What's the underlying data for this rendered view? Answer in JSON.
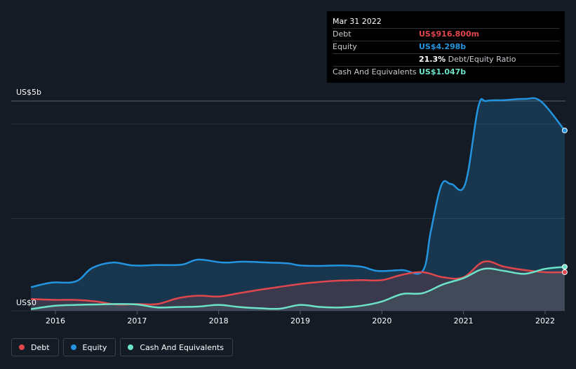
{
  "chart_data": {
    "type": "area",
    "title": "",
    "ylabel_top": "US$5b",
    "ylabel_bottom": "US$0",
    "ylim": [
      0,
      5
    ],
    "xlim": [
      2015.7,
      2022.24
    ],
    "x_ticks": [
      "2016",
      "2017",
      "2018",
      "2019",
      "2020",
      "2021",
      "2022"
    ],
    "series": [
      {
        "name": "Debt",
        "color": "#e0474c",
        "x": [
          2015.7,
          2016.0,
          2016.25,
          2016.5,
          2016.75,
          2017.0,
          2017.25,
          2017.5,
          2017.75,
          2018.0,
          2018.25,
          2018.5,
          2018.75,
          2019.0,
          2019.25,
          2019.5,
          2019.75,
          2020.0,
          2020.25,
          2020.5,
          2020.75,
          2021.0,
          2021.25,
          2021.5,
          2021.75,
          2022.0,
          2022.24
        ],
        "values": [
          0.28,
          0.26,
          0.26,
          0.22,
          0.15,
          0.16,
          0.16,
          0.3,
          0.36,
          0.34,
          0.42,
          0.5,
          0.57,
          0.64,
          0.69,
          0.72,
          0.73,
          0.73,
          0.86,
          0.92,
          0.8,
          0.8,
          1.17,
          1.05,
          0.97,
          0.92,
          0.92
        ]
      },
      {
        "name": "Equity",
        "color": "#2394df",
        "x": [
          2015.7,
          2015.95,
          2016.25,
          2016.45,
          2016.7,
          2016.95,
          2017.25,
          2017.55,
          2017.75,
          2018.05,
          2018.3,
          2018.6,
          2018.85,
          2019.0,
          2019.25,
          2019.5,
          2019.75,
          2019.95,
          2020.25,
          2020.5,
          2020.6,
          2020.73,
          2020.85,
          2021.02,
          2021.18,
          2021.28,
          2021.5,
          2021.75,
          2021.95,
          2022.24
        ],
        "values": [
          0.56,
          0.67,
          0.7,
          1.02,
          1.15,
          1.08,
          1.09,
          1.1,
          1.22,
          1.15,
          1.17,
          1.15,
          1.13,
          1.08,
          1.07,
          1.08,
          1.05,
          0.95,
          0.97,
          0.95,
          1.9,
          3.0,
          3.02,
          3.02,
          4.85,
          5.0,
          5.02,
          5.05,
          4.99,
          4.298
        ]
      },
      {
        "name": "Cash And Equivalents",
        "color": "#6ce3c8",
        "x": [
          2015.7,
          2016.0,
          2016.25,
          2016.5,
          2016.75,
          2017.0,
          2017.25,
          2017.5,
          2017.75,
          2018.0,
          2018.25,
          2018.5,
          2018.75,
          2019.0,
          2019.25,
          2019.5,
          2019.75,
          2020.0,
          2020.25,
          2020.5,
          2020.75,
          2021.0,
          2021.25,
          2021.5,
          2021.75,
          2022.0,
          2022.24
        ],
        "values": [
          0.04,
          0.12,
          0.14,
          0.15,
          0.16,
          0.15,
          0.08,
          0.09,
          0.1,
          0.14,
          0.09,
          0.06,
          0.05,
          0.14,
          0.09,
          0.08,
          0.12,
          0.22,
          0.4,
          0.42,
          0.63,
          0.78,
          1.0,
          0.95,
          0.88,
          1.0,
          1.047
        ]
      }
    ]
  },
  "tooltip": {
    "date": "Mar 31 2022",
    "debt_label": "Debt",
    "debt_value": "US$916.800m",
    "equity_label": "Equity",
    "equity_value": "US$4.298b",
    "ratio_value": "21.3%",
    "ratio_label": "Debt/Equity Ratio",
    "cash_label": "Cash And Equivalents",
    "cash_value": "US$1.047b"
  },
  "legend": {
    "debt": "Debt",
    "equity": "Equity",
    "cash": "Cash And Equivalents"
  },
  "colors": {
    "debt": "#e0474c",
    "equity": "#2394df",
    "cash": "#6ce3c8",
    "background": "#151b25"
  }
}
